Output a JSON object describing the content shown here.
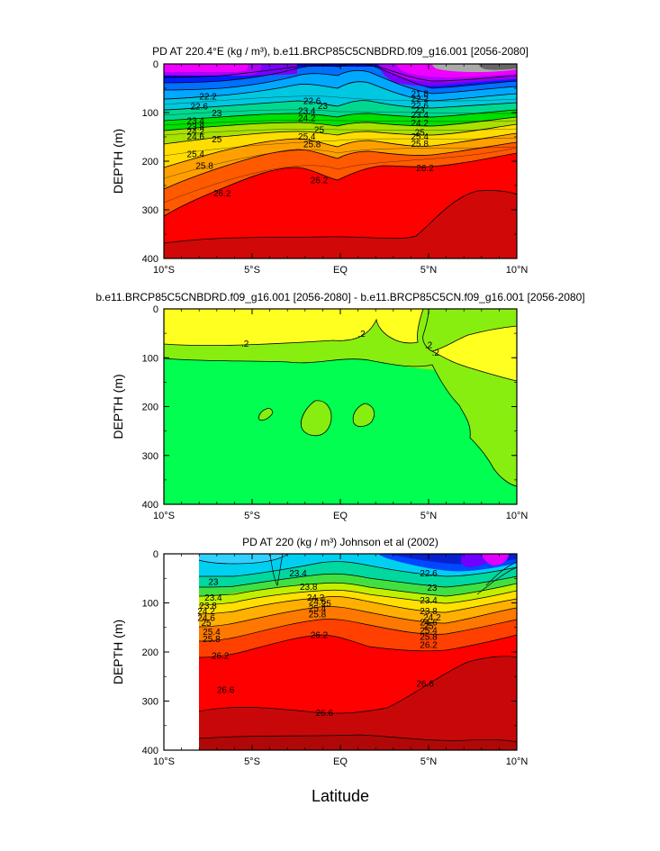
{
  "chart_data": [
    {
      "type": "contour",
      "title": "PD AT 220.4°E (kg / m³), b.e11.BRCP85C5CNBDRD.f09_g16.001 [2056-2080]",
      "xlabel": "",
      "ylabel": "DEPTH (m)",
      "xlim": [
        -10,
        10
      ],
      "ylim": [
        400,
        0
      ],
      "x_ticks": [
        "10°S",
        "5°S",
        "EQ",
        "5°N",
        "10°N"
      ],
      "y_ticks": [
        "0",
        "100",
        "200",
        "300",
        "400"
      ],
      "contour_levels": [
        21.8,
        22.2,
        22.6,
        23,
        23.4,
        23.8,
        24.2,
        24.6,
        25,
        25.4,
        25.8,
        26.2
      ],
      "contour_labels": [
        {
          "text": "22.2",
          "lat": -7.5,
          "depth": 68
        },
        {
          "text": "22.6",
          "lat": -8.0,
          "depth": 88
        },
        {
          "text": "23",
          "lat": -7.0,
          "depth": 102
        },
        {
          "text": "23.4",
          "lat": -8.2,
          "depth": 118
        },
        {
          "text": "23.8",
          "lat": -8.2,
          "depth": 130
        },
        {
          "text": "24.2",
          "lat": -8.2,
          "depth": 140
        },
        {
          "text": "24.6",
          "lat": -8.2,
          "depth": 150
        },
        {
          "text": "25",
          "lat": -7.0,
          "depth": 156
        },
        {
          "text": "25.4",
          "lat": -8.2,
          "depth": 186
        },
        {
          "text": "25.8",
          "lat": -7.7,
          "depth": 210
        },
        {
          "text": "26.2",
          "lat": -6.7,
          "depth": 267
        },
        {
          "text": "22.6",
          "lat": -1.6,
          "depth": 77
        },
        {
          "text": "23",
          "lat": -1.0,
          "depth": 87
        },
        {
          "text": "23.4",
          "lat": -1.9,
          "depth": 97
        },
        {
          "text": "24.2",
          "lat": -1.9,
          "depth": 112
        },
        {
          "text": "25",
          "lat": -1.2,
          "depth": 136
        },
        {
          "text": "25.4",
          "lat": -1.9,
          "depth": 150
        },
        {
          "text": "25.8",
          "lat": -1.6,
          "depth": 166
        },
        {
          "text": "26.2",
          "lat": -1.2,
          "depth": 240
        },
        {
          "text": "21.8",
          "lat": 4.5,
          "depth": 62
        },
        {
          "text": "22.2",
          "lat": 4.5,
          "depth": 72
        },
        {
          "text": "22.6",
          "lat": 4.5,
          "depth": 86
        },
        {
          "text": "23",
          "lat": 4.5,
          "depth": 95
        },
        {
          "text": "23.4",
          "lat": 4.5,
          "depth": 106
        },
        {
          "text": "24.2",
          "lat": 4.5,
          "depth": 122
        },
        {
          "text": "25",
          "lat": 4.5,
          "depth": 142
        },
        {
          "text": "25.4",
          "lat": 4.5,
          "depth": 150
        },
        {
          "text": "25.8",
          "lat": 4.5,
          "depth": 165
        },
        {
          "text": "26.2",
          "lat": 4.8,
          "depth": 215
        }
      ]
    },
    {
      "type": "contour",
      "title": "b.e11.BRCP85C5CNBDRD.f09_g16.001 [2056-2080] - b.e11.BRCP85C5CN.f09_g16.001 [2056-2080]",
      "xlabel": "",
      "ylabel": "DEPTH (m)",
      "xlim": [
        -10,
        10
      ],
      "ylim": [
        400,
        0
      ],
      "x_ticks": [
        "10°S",
        "5°S",
        "EQ",
        "5°N",
        "10°N"
      ],
      "y_ticks": [
        "0",
        "100",
        "200",
        "300",
        "400"
      ],
      "contour_levels": [
        0.2
      ],
      "contour_labels": [
        {
          "text": ".2",
          "lat": -5.4,
          "depth": 72
        },
        {
          "text": ".2",
          "lat": 1.2,
          "depth": 52
        },
        {
          "text": ".2",
          "lat": 5.0,
          "depth": 75
        },
        {
          "text": ".2",
          "lat": 5.4,
          "depth": 90
        }
      ]
    },
    {
      "type": "contour",
      "title": "PD AT 220 (kg / m³) Johnson et al (2002)",
      "xlabel": "Latitude",
      "ylabel": "DEPTH (m)",
      "xlim": [
        -10,
        10
      ],
      "ylim": [
        400,
        0
      ],
      "x_ticks": [
        "10°S",
        "5°S",
        "EQ",
        "5°N",
        "10°N"
      ],
      "y_ticks": [
        "0",
        "100",
        "200",
        "300",
        "400"
      ],
      "data_lat_range": [
        -8,
        10
      ],
      "contour_levels": [
        22.6,
        23,
        23.4,
        23.8,
        24.2,
        24.6,
        25,
        25.4,
        25.8,
        26.2,
        26.6
      ],
      "contour_labels": [
        {
          "text": "23",
          "lat": -7.2,
          "depth": 58
        },
        {
          "text": "23.4",
          "lat": -7.2,
          "depth": 90
        },
        {
          "text": "23.8",
          "lat": -7.5,
          "depth": 106
        },
        {
          "text": "24.2",
          "lat": -7.6,
          "depth": 117
        },
        {
          "text": "24.6",
          "lat": -7.6,
          "depth": 131
        },
        {
          "text": "25",
          "lat": -7.6,
          "depth": 141
        },
        {
          "text": "25.4",
          "lat": -7.3,
          "depth": 160
        },
        {
          "text": "25.8",
          "lat": -7.3,
          "depth": 174
        },
        {
          "text": "26.2",
          "lat": -6.8,
          "depth": 208
        },
        {
          "text": "26.6",
          "lat": -6.5,
          "depth": 278
        },
        {
          "text": "23.4",
          "lat": -2.4,
          "depth": 40
        },
        {
          "text": "23.8",
          "lat": -1.8,
          "depth": 68
        },
        {
          "text": "24.2",
          "lat": -1.4,
          "depth": 90
        },
        {
          "text": "24.6",
          "lat": -1.3,
          "depth": 98
        },
        {
          "text": "25",
          "lat": -0.8,
          "depth": 102
        },
        {
          "text": "25.4",
          "lat": -1.3,
          "depth": 112
        },
        {
          "text": "25.8",
          "lat": -1.3,
          "depth": 124
        },
        {
          "text": "26.2",
          "lat": -1.2,
          "depth": 166
        },
        {
          "text": "26.6",
          "lat": -0.9,
          "depth": 325
        },
        {
          "text": "22.6",
          "lat": 5.0,
          "depth": 40
        },
        {
          "text": "23",
          "lat": 5.2,
          "depth": 70
        },
        {
          "text": "23.4",
          "lat": 5.0,
          "depth": 95
        },
        {
          "text": "23.8",
          "lat": 5.0,
          "depth": 117
        },
        {
          "text": "24.2",
          "lat": 5.2,
          "depth": 130
        },
        {
          "text": "24.6",
          "lat": 5.0,
          "depth": 140
        },
        {
          "text": "25",
          "lat": 5.0,
          "depth": 148
        },
        {
          "text": "25.4",
          "lat": 5.0,
          "depth": 157
        },
        {
          "text": "25.8",
          "lat": 5.0,
          "depth": 170
        },
        {
          "text": "26.2",
          "lat": 5.0,
          "depth": 186
        },
        {
          "text": "26.6",
          "lat": 4.8,
          "depth": 265
        }
      ]
    }
  ]
}
